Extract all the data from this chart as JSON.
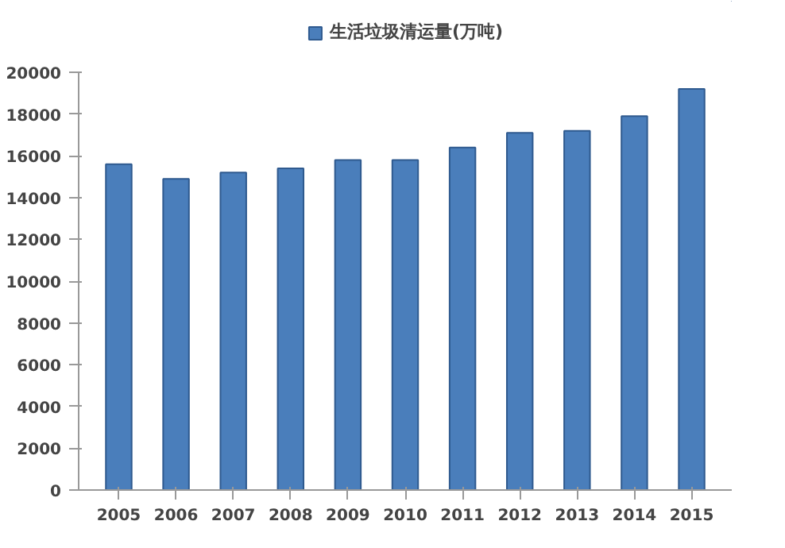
{
  "chart_data": {
    "type": "bar",
    "categories": [
      "2005",
      "2006",
      "2007",
      "2008",
      "2009",
      "2010",
      "2011",
      "2012",
      "2013",
      "2014",
      "2015"
    ],
    "series": [
      {
        "name": "生活垃圾清运量(万吨)",
        "color": "#4a7ebb",
        "values": [
          15600,
          14900,
          15200,
          15400,
          15800,
          15800,
          16400,
          17100,
          17200,
          17900,
          19200
        ]
      }
    ],
    "ylim": [
      0,
      20000
    ],
    "yticks": [
      0,
      2000,
      4000,
      6000,
      8000,
      10000,
      12000,
      14000,
      16000,
      18000,
      20000
    ],
    "grid": false,
    "legend": "top"
  }
}
